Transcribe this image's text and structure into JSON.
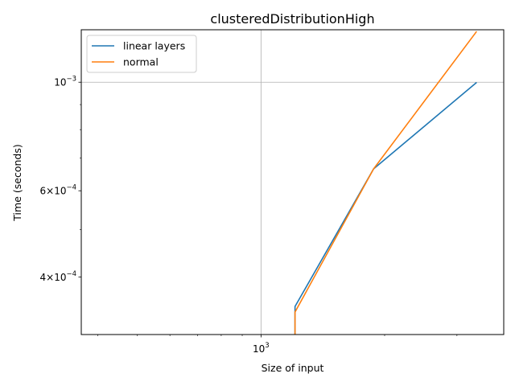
{
  "chart_data": {
    "type": "line",
    "title": "clusteredDistributionHigh",
    "xlabel": "Size of input",
    "ylabel": "Time (seconds)",
    "x_scale": "log",
    "y_scale": "log",
    "xlim": [
      365,
      3900
    ],
    "ylim": [
      0.000305,
      0.00128
    ],
    "grid": true,
    "legend_position": "top-left",
    "x_ticks": [
      {
        "value": 1000,
        "base": "10",
        "exp": "3"
      }
    ],
    "y_ticks": [
      {
        "value": 0.0004,
        "mant": "4",
        "base": "10",
        "exp": "−4",
        "style": "mant"
      },
      {
        "value": 0.0006,
        "mant": "6",
        "base": "10",
        "exp": "−4",
        "style": "mant"
      },
      {
        "value": 0.001,
        "mant": "",
        "base": "10",
        "exp": "−3",
        "style": "pow"
      }
    ],
    "series": [
      {
        "name": "linear layers",
        "color": "#1f77b4",
        "x": [
          1210,
          1210,
          1880,
          3350
        ],
        "y": [
          0.000295,
          0.000348,
          0.000665,
          0.000999
        ]
      },
      {
        "name": "normal",
        "color": "#ff7f0e",
        "x": [
          1210,
          1210,
          1880,
          3350
        ],
        "y": [
          0.000295,
          0.000339,
          0.000665,
          0.00127
        ]
      }
    ]
  }
}
